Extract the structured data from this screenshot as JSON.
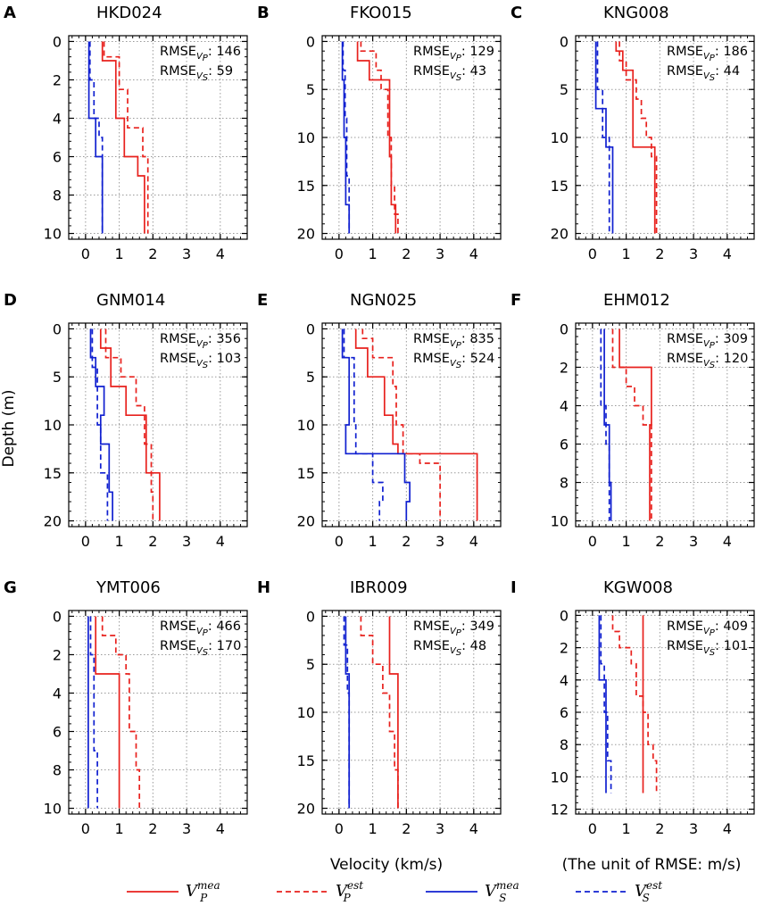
{
  "figure": {
    "ylabel": "Depth (m)",
    "xlabel": "Velocity (km/s)",
    "unit_note": "(The unit of RMSE: m/s)",
    "rmse_prefix": "RMSE",
    "rmse_vp_sub": "V",
    "rmse_vp_subsub": "P",
    "rmse_vs_sub": "V",
    "rmse_vs_subsub": "S",
    "colors": {
      "p": "#e8211d",
      "s": "#1020d0",
      "grid": "#9a9a9a"
    }
  },
  "legend": [
    {
      "base": "V",
      "sup": "mea",
      "sub": "P",
      "color": "#e8211d",
      "dashed": false
    },
    {
      "base": "V",
      "sup": "est",
      "sub": "P",
      "color": "#e8211d",
      "dashed": true
    },
    {
      "base": "V",
      "sup": "mea",
      "sub": "S",
      "color": "#1020d0",
      "dashed": false
    },
    {
      "base": "V",
      "sup": "est",
      "sub": "S",
      "color": "#1020d0",
      "dashed": true
    }
  ],
  "chart_data": [
    {
      "type": "line",
      "panel": "A",
      "title": "HKD024",
      "rmse_vp": "146",
      "rmse_vs": "59",
      "xlim": [
        -0.5,
        4.8
      ],
      "xticks": [
        0,
        1,
        2,
        3,
        4
      ],
      "ylim": [
        10.3,
        -0.3
      ],
      "yticks": [
        0,
        2,
        4,
        6,
        8,
        10
      ],
      "series": [
        {
          "name": "Vp_mea",
          "x": [
            0.5,
            0.5,
            0.9,
            0.9,
            1.15,
            1.15,
            1.55,
            1.55,
            1.75,
            1.75
          ],
          "y": [
            0,
            1,
            1,
            4,
            4,
            6,
            6,
            7,
            7,
            10
          ]
        },
        {
          "name": "Vp_est",
          "x": [
            0.55,
            0.55,
            1.0,
            1.0,
            1.25,
            1.25,
            1.7,
            1.7,
            1.85,
            1.85
          ],
          "y": [
            0,
            0.8,
            0.8,
            2.5,
            2.5,
            4.5,
            4.5,
            6,
            6,
            10
          ]
        },
        {
          "name": "Vs_mea",
          "x": [
            0.1,
            0.1,
            0.3,
            0.3,
            0.5,
            0.5
          ],
          "y": [
            0,
            4,
            4,
            6,
            6,
            10
          ]
        },
        {
          "name": "Vs_est",
          "x": [
            0.13,
            0.13,
            0.25,
            0.25,
            0.4,
            0.4,
            0.5,
            0.5
          ],
          "y": [
            0,
            2,
            2,
            4,
            4,
            5,
            5,
            10
          ]
        }
      ]
    },
    {
      "type": "line",
      "panel": "B",
      "title": "FKO015",
      "rmse_vp": "129",
      "rmse_vs": "43",
      "xlim": [
        -0.5,
        4.8
      ],
      "xticks": [
        0,
        1,
        2,
        3,
        4
      ],
      "ylim": [
        20.6,
        -0.6
      ],
      "yticks": [
        0,
        5,
        10,
        15,
        20
      ],
      "series": [
        {
          "name": "Vp_mea",
          "x": [
            0.55,
            0.55,
            0.9,
            0.9,
            1.5,
            1.5,
            1.55,
            1.55,
            1.68,
            1.68
          ],
          "y": [
            0,
            2,
            2,
            4,
            4,
            12,
            12,
            17,
            17,
            20
          ]
        },
        {
          "name": "Vp_est",
          "x": [
            0.65,
            0.65,
            1.1,
            1.1,
            1.25,
            1.25,
            1.45,
            1.45,
            1.55,
            1.55,
            1.65,
            1.65,
            1.75,
            1.75
          ],
          "y": [
            0,
            1,
            1,
            3,
            3,
            5,
            5,
            10,
            10,
            15,
            15,
            18,
            18,
            20
          ]
        },
        {
          "name": "Vs_mea",
          "x": [
            0.1,
            0.1,
            0.15,
            0.15,
            0.2,
            0.2,
            0.3,
            0.3
          ],
          "y": [
            0,
            4,
            4,
            10,
            10,
            17,
            17,
            20
          ]
        },
        {
          "name": "Vs_est",
          "x": [
            0.12,
            0.12,
            0.18,
            0.18,
            0.23,
            0.23,
            0.3,
            0.3
          ],
          "y": [
            0,
            3,
            3,
            8,
            8,
            14,
            14,
            20
          ]
        }
      ]
    },
    {
      "type": "line",
      "panel": "C",
      "title": "KNG008",
      "rmse_vp": "186",
      "rmse_vs": "44",
      "xlim": [
        -0.5,
        4.8
      ],
      "xticks": [
        0,
        1,
        2,
        3,
        4
      ],
      "ylim": [
        20.6,
        -0.6
      ],
      "yticks": [
        0,
        5,
        10,
        15,
        20
      ],
      "series": [
        {
          "name": "Vp_mea",
          "x": [
            0.7,
            0.7,
            0.9,
            0.9,
            1.2,
            1.2,
            1.85,
            1.85
          ],
          "y": [
            0,
            1,
            1,
            3,
            3,
            11,
            11,
            20
          ]
        },
        {
          "name": "Vp_est",
          "x": [
            0.8,
            0.8,
            1.0,
            1.0,
            1.3,
            1.3,
            1.45,
            1.45,
            1.6,
            1.6,
            1.75,
            1.75,
            1.9,
            1.9
          ],
          "y": [
            0,
            2,
            2,
            4,
            4,
            6,
            6,
            8,
            8,
            10,
            10,
            12,
            12,
            20
          ]
        },
        {
          "name": "Vs_mea",
          "x": [
            0.1,
            0.1,
            0.4,
            0.4,
            0.6,
            0.6
          ],
          "y": [
            0,
            7,
            7,
            11,
            11,
            20
          ]
        },
        {
          "name": "Vs_est",
          "x": [
            0.15,
            0.15,
            0.3,
            0.3,
            0.5,
            0.5
          ],
          "y": [
            0,
            5,
            5,
            10,
            10,
            20
          ]
        }
      ]
    },
    {
      "type": "line",
      "panel": "D",
      "title": "GNM014",
      "rmse_vp": "356",
      "rmse_vs": "103",
      "xlim": [
        -0.5,
        4.8
      ],
      "xticks": [
        0,
        1,
        2,
        3,
        4
      ],
      "ylim": [
        20.6,
        -0.6
      ],
      "yticks": [
        0,
        5,
        10,
        15,
        20
      ],
      "series": [
        {
          "name": "Vp_mea",
          "x": [
            0.45,
            0.45,
            0.75,
            0.75,
            1.2,
            1.2,
            1.8,
            1.8,
            2.2,
            2.2
          ],
          "y": [
            0,
            2,
            2,
            6,
            6,
            9,
            9,
            15,
            15,
            20
          ]
        },
        {
          "name": "Vp_est",
          "x": [
            0.6,
            0.6,
            1.05,
            1.05,
            1.5,
            1.5,
            1.75,
            1.75,
            1.95,
            1.95,
            2.0,
            2.0
          ],
          "y": [
            0,
            3,
            3,
            5,
            5,
            8,
            8,
            12,
            12,
            17,
            17,
            20
          ]
        },
        {
          "name": "Vs_mea",
          "x": [
            0.15,
            0.15,
            0.3,
            0.3,
            0.55,
            0.55,
            0.45,
            0.45,
            0.7,
            0.7,
            0.8,
            0.8
          ],
          "y": [
            0,
            3,
            3,
            6,
            6,
            9,
            9,
            12,
            12,
            17,
            17,
            20
          ]
        },
        {
          "name": "Vs_est",
          "x": [
            0.2,
            0.2,
            0.35,
            0.35,
            0.45,
            0.45,
            0.65,
            0.65
          ],
          "y": [
            0,
            4,
            4,
            10,
            10,
            15,
            15,
            20
          ]
        }
      ]
    },
    {
      "type": "line",
      "panel": "E",
      "title": "NGN025",
      "rmse_vp": "835",
      "rmse_vs": "524",
      "xlim": [
        -0.5,
        4.8
      ],
      "xticks": [
        0,
        1,
        2,
        3,
        4
      ],
      "ylim": [
        20.6,
        -0.6
      ],
      "yticks": [
        0,
        5,
        10,
        15,
        20
      ],
      "series": [
        {
          "name": "Vp_mea",
          "x": [
            0.5,
            0.5,
            0.85,
            0.85,
            1.35,
            1.35,
            1.6,
            1.6,
            1.75,
            1.75,
            4.1,
            4.1
          ],
          "y": [
            0,
            2,
            2,
            5,
            5,
            9,
            9,
            12,
            12,
            13,
            13,
            20
          ]
        },
        {
          "name": "Vp_est",
          "x": [
            0.7,
            0.7,
            1.0,
            1.0,
            1.6,
            1.6,
            1.7,
            1.7,
            1.9,
            1.9,
            2.4,
            2.4,
            3.0,
            3.0
          ],
          "y": [
            0,
            1,
            1,
            3,
            3,
            6,
            6,
            10,
            10,
            13,
            13,
            14,
            14,
            20
          ]
        },
        {
          "name": "Vs_mea",
          "x": [
            0.1,
            0.1,
            0.3,
            0.3,
            0.2,
            0.2,
            1.95,
            1.95,
            2.1,
            2.1,
            2.0,
            2.0
          ],
          "y": [
            0,
            3,
            3,
            10,
            10,
            13,
            13,
            16,
            16,
            18,
            18,
            20
          ]
        },
        {
          "name": "Vs_est",
          "x": [
            0.15,
            0.15,
            0.45,
            0.45,
            0.5,
            0.5,
            1.0,
            1.0,
            1.3,
            1.3,
            1.2,
            1.2
          ],
          "y": [
            0,
            3,
            3,
            10,
            10,
            13,
            13,
            16,
            16,
            18,
            18,
            20
          ]
        }
      ]
    },
    {
      "type": "line",
      "panel": "F",
      "title": "EHM012",
      "rmse_vp": "309",
      "rmse_vs": "120",
      "xlim": [
        -0.5,
        4.8
      ],
      "xticks": [
        0,
        1,
        2,
        3,
        4
      ],
      "ylim": [
        10.3,
        -0.3
      ],
      "yticks": [
        0,
        2,
        4,
        6,
        8,
        10
      ],
      "series": [
        {
          "name": "Vp_mea",
          "x": [
            0.8,
            0.8,
            1.75,
            1.75,
            1.7,
            1.7
          ],
          "y": [
            0,
            2,
            2,
            5,
            5,
            10
          ]
        },
        {
          "name": "Vp_est",
          "x": [
            0.6,
            0.6,
            1.0,
            1.0,
            1.25,
            1.25,
            1.5,
            1.5,
            1.75,
            1.75
          ],
          "y": [
            0,
            2,
            2,
            3,
            3,
            4,
            4,
            5,
            5,
            10
          ]
        },
        {
          "name": "Vs_mea",
          "x": [
            0.35,
            0.35,
            0.5,
            0.5,
            0.55,
            0.55
          ],
          "y": [
            0,
            5,
            5,
            8,
            8,
            10
          ]
        },
        {
          "name": "Vs_est",
          "x": [
            0.25,
            0.25,
            0.4,
            0.4,
            0.5,
            0.5
          ],
          "y": [
            0,
            4,
            4,
            6,
            6,
            10
          ]
        }
      ]
    },
    {
      "type": "line",
      "panel": "G",
      "title": "YMT006",
      "rmse_vp": "466",
      "rmse_vs": "170",
      "xlim": [
        -0.5,
        4.8
      ],
      "xticks": [
        0,
        1,
        2,
        3,
        4
      ],
      "ylim": [
        10.3,
        -0.3
      ],
      "yticks": [
        0,
        2,
        4,
        6,
        8,
        10
      ],
      "series": [
        {
          "name": "Vp_mea",
          "x": [
            0.3,
            0.3,
            1.0,
            1.0
          ],
          "y": [
            0,
            3,
            3,
            10
          ]
        },
        {
          "name": "Vp_est",
          "x": [
            0.5,
            0.5,
            0.9,
            0.9,
            1.2,
            1.2,
            1.3,
            1.3,
            1.5,
            1.5,
            1.6,
            1.6
          ],
          "y": [
            0,
            1,
            1,
            2,
            2,
            3,
            3,
            6,
            6,
            8,
            8,
            10
          ]
        },
        {
          "name": "Vs_mea",
          "x": [
            0.08,
            0.08
          ],
          "y": [
            0,
            10
          ]
        },
        {
          "name": "Vs_est",
          "x": [
            0.15,
            0.15,
            0.25,
            0.25,
            0.35,
            0.35
          ],
          "y": [
            0,
            2,
            2,
            7,
            7,
            10
          ]
        }
      ]
    },
    {
      "type": "line",
      "panel": "H",
      "title": "IBR009",
      "rmse_vp": "349",
      "rmse_vs": "48",
      "xlim": [
        -0.5,
        4.8
      ],
      "xticks": [
        0,
        1,
        2,
        3,
        4
      ],
      "ylim": [
        20.6,
        -0.6
      ],
      "yticks": [
        0,
        5,
        10,
        15,
        20
      ],
      "series": [
        {
          "name": "Vp_mea",
          "x": [
            1.5,
            1.5,
            1.75,
            1.75
          ],
          "y": [
            0,
            6,
            6,
            20
          ]
        },
        {
          "name": "Vp_est",
          "x": [
            0.65,
            0.65,
            1.0,
            1.0,
            1.3,
            1.3,
            1.5,
            1.5,
            1.65,
            1.65,
            1.75,
            1.75
          ],
          "y": [
            0,
            2,
            2,
            5,
            5,
            8,
            8,
            12,
            12,
            16,
            16,
            20
          ]
        },
        {
          "name": "Vs_mea",
          "x": [
            0.2,
            0.2,
            0.3,
            0.3
          ],
          "y": [
            0,
            6,
            6,
            20
          ]
        },
        {
          "name": "Vs_est",
          "x": [
            0.15,
            0.15,
            0.25,
            0.25,
            0.3,
            0.3
          ],
          "y": [
            0,
            3,
            3,
            8,
            8,
            20
          ]
        }
      ]
    },
    {
      "type": "line",
      "panel": "I",
      "title": "KGW008",
      "rmse_vp": "409",
      "rmse_vs": "101",
      "xlim": [
        -0.5,
        4.8
      ],
      "xticks": [
        0,
        1,
        2,
        3,
        4
      ],
      "ylim": [
        12.3,
        -0.3
      ],
      "yticks": [
        0,
        2,
        4,
        6,
        8,
        10,
        12
      ],
      "series": [
        {
          "name": "Vp_mea",
          "x": [
            1.5,
            1.5
          ],
          "y": [
            0,
            11
          ]
        },
        {
          "name": "Vp_est",
          "x": [
            0.6,
            0.6,
            0.8,
            0.8,
            1.15,
            1.15,
            1.3,
            1.3,
            1.5,
            1.5,
            1.65,
            1.65,
            1.8,
            1.8,
            1.9,
            1.9
          ],
          "y": [
            0,
            1,
            1,
            2,
            2,
            3,
            3,
            5,
            5,
            6,
            6,
            8,
            8,
            9,
            9,
            11
          ]
        },
        {
          "name": "Vs_mea",
          "x": [
            0.2,
            0.2,
            0.4,
            0.4
          ],
          "y": [
            0,
            4,
            4,
            11
          ]
        },
        {
          "name": "Vs_est",
          "x": [
            0.25,
            0.25,
            0.35,
            0.35,
            0.45,
            0.45,
            0.55,
            0.55
          ],
          "y": [
            0,
            3,
            3,
            6,
            6,
            9,
            9,
            11
          ]
        }
      ]
    }
  ]
}
